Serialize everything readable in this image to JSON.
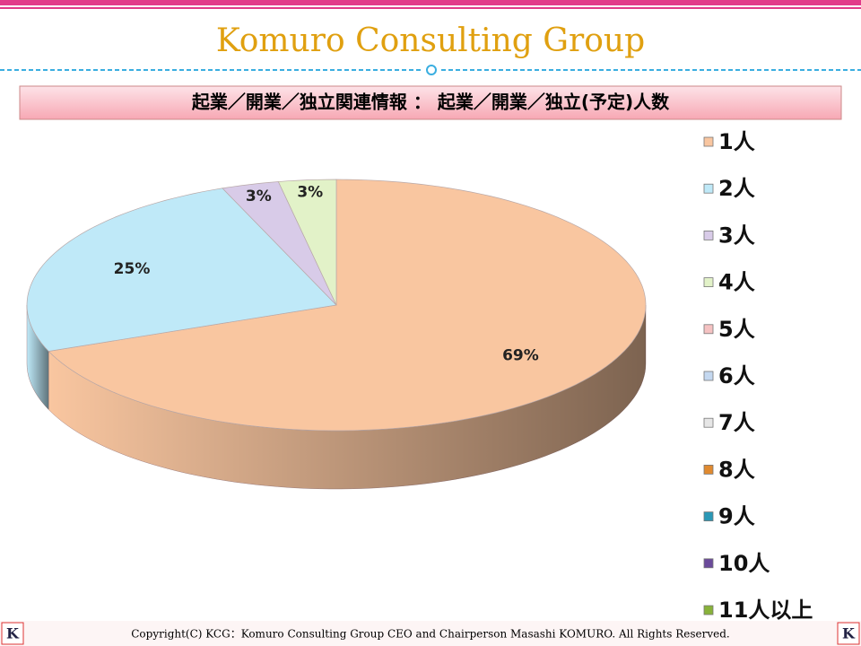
{
  "header": {
    "title": "Komuro Consulting Group",
    "logo": "K"
  },
  "footer": {
    "copyright": "Copyright(C)  KCG：Komuro Consulting Group CEO and Chairperson Masashi KOMURO. All Rights Reserved."
  },
  "chart_data": {
    "type": "pie",
    "title": "起業／開業／独立関連情報 ： 起業／開業／独立(予定)人数",
    "categories": [
      "1人",
      "2人",
      "3人",
      "4人",
      "5人",
      "6人",
      "7人",
      "8人",
      "9人",
      "10人",
      "11人以上"
    ],
    "values": [
      69,
      25,
      3,
      3,
      0,
      0,
      0,
      0,
      0,
      0,
      0
    ],
    "value_labels": [
      "69%",
      "25%",
      "3%",
      "3%",
      null,
      null,
      null,
      null,
      null,
      null,
      null
    ],
    "colors": [
      "#f9c6a0",
      "#bfe9f8",
      "#d8cbe8",
      "#e2f2c8",
      "#f5c2c2",
      "#c4d8f0",
      "#e6e6e6",
      "#e08a30",
      "#2b98b6",
      "#6a4a9a",
      "#88b23a"
    ],
    "legend": "right"
  }
}
